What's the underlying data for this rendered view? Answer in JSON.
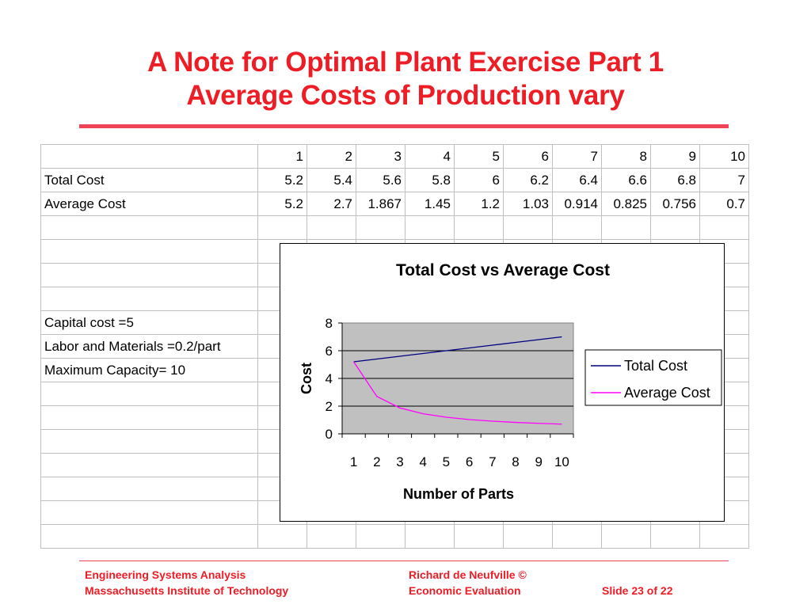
{
  "slide": {
    "title_line1": "A Note for Optimal Plant Exercise Part 1",
    "title_line2": "Average Costs of Production vary"
  },
  "table": {
    "header": [
      "",
      "1",
      "2",
      "3",
      "4",
      "5",
      "6",
      "7",
      "8",
      "9",
      "10"
    ],
    "rows": [
      [
        "Total Cost",
        "5.2",
        "5.4",
        "5.6",
        "5.8",
        "6",
        "6.2",
        "6.4",
        "6.6",
        "6.8",
        "7"
      ],
      [
        "Average Cost",
        "5.2",
        "2.7",
        "1.867",
        "1.45",
        "1.2",
        "1.03",
        "0.914",
        "0.825",
        "0.756",
        "0.7"
      ],
      [
        "",
        "",
        "",
        "",
        "",
        "",
        "",
        "",
        "",
        "",
        ""
      ],
      [
        "",
        "",
        "",
        "",
        "",
        "",
        "",
        "",
        "",
        "",
        ""
      ],
      [
        "",
        "",
        "",
        "",
        "",
        "",
        "",
        "",
        "",
        "",
        ""
      ],
      [
        "",
        "",
        "",
        "",
        "",
        "",
        "",
        "",
        "",
        "",
        ""
      ],
      [
        "Capital cost =5",
        "",
        "",
        "",
        "",
        "",
        "",
        "",
        "",
        "",
        ""
      ],
      [
        "Labor and Materials =0.2/part",
        "",
        "",
        "",
        "",
        "",
        "",
        "",
        "",
        "",
        ""
      ],
      [
        "Maximum Capacity= 10",
        "",
        "",
        "",
        "",
        "",
        "",
        "",
        "",
        "",
        ""
      ],
      [
        "",
        "",
        "",
        "",
        "",
        "",
        "",
        "",
        "",
        "",
        ""
      ],
      [
        "",
        "",
        "",
        "",
        "",
        "",
        "",
        "",
        "",
        "",
        ""
      ],
      [
        "",
        "",
        "",
        "",
        "",
        "",
        "",
        "",
        "",
        "",
        ""
      ],
      [
        "",
        "",
        "",
        "",
        "",
        "",
        "",
        "",
        "",
        "",
        ""
      ],
      [
        "",
        "",
        "",
        "",
        "",
        "",
        "",
        "",
        "",
        "",
        ""
      ],
      [
        "",
        "",
        "",
        "",
        "",
        "",
        "",
        "",
        "",
        "",
        ""
      ],
      [
        "",
        "",
        "",
        "",
        "",
        "",
        "",
        "",
        "",
        "",
        ""
      ]
    ]
  },
  "chart_data": {
    "type": "line",
    "title": "Total Cost vs Average Cost",
    "xlabel": "Number of Parts",
    "ylabel": "Cost",
    "x": [
      1,
      2,
      3,
      4,
      5,
      6,
      7,
      8,
      9,
      10
    ],
    "yticks": [
      0,
      2,
      4,
      6,
      8
    ],
    "ylim": [
      0,
      8
    ],
    "grid": true,
    "legend": "right",
    "plot_background": "#c0c0c0",
    "series": [
      {
        "name": "Total Cost",
        "color": "#000080",
        "values": [
          5.2,
          5.4,
          5.6,
          5.8,
          6,
          6.2,
          6.4,
          6.6,
          6.8,
          7
        ]
      },
      {
        "name": "Average Cost",
        "color": "#ff00ff",
        "values": [
          5.2,
          2.7,
          1.867,
          1.45,
          1.2,
          1.03,
          0.914,
          0.825,
          0.756,
          0.7
        ]
      }
    ]
  },
  "footer": {
    "left_line1": "Engineering Systems Analysis",
    "left_line2": "Massachusetts Institute of Technology",
    "mid_line1": "Richard de Neufville  ©",
    "mid_line2": "Economic Evaluation",
    "slide_number": "Slide 23 of 22"
  }
}
